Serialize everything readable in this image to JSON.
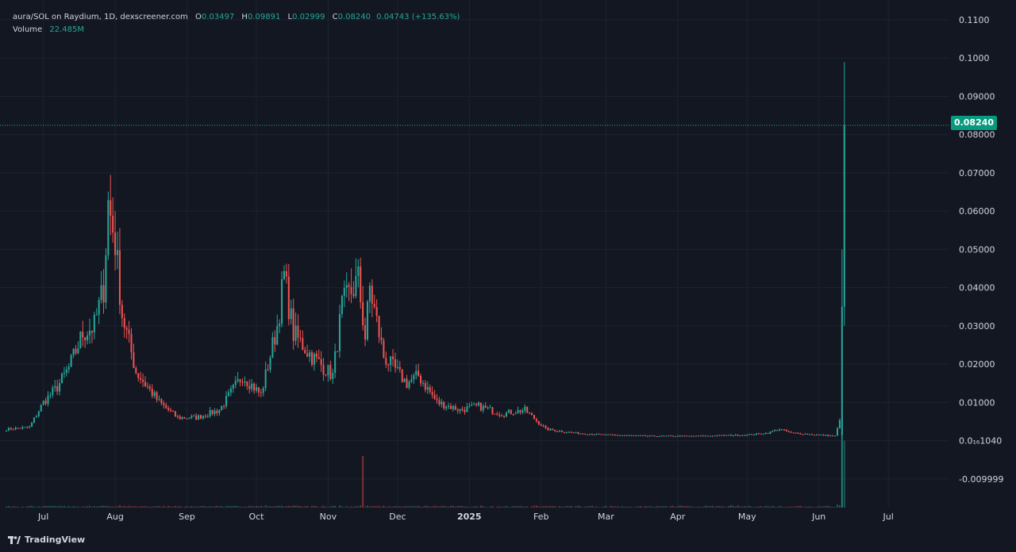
{
  "legend": {
    "symbol": "aura/SOL on Raydium, 1D, dexscreener.com",
    "o_label": "O",
    "o": "0.03497",
    "h_label": "H",
    "h": "0.09891",
    "l_label": "L",
    "l": "0.02999",
    "c_label": "C",
    "c": "0.08240",
    "change": "0.04743 (+135.63%)",
    "volume_label": "Volume",
    "volume": "22.485M"
  },
  "last_price_label": "0.08240",
  "footer": {
    "brand": "TradingView"
  },
  "colors": {
    "up": "#26a69a",
    "down": "#ef5350",
    "background": "#131722",
    "grid": "#1f2330",
    "text": "#d1d4dc",
    "price_tag": "#089981"
  },
  "chart_data": {
    "type": "candlestick",
    "title": "aura/SOL on Raydium, 1D, dexscreener.com",
    "x_ticks": [
      "Jul",
      "Aug",
      "Sep",
      "Oct",
      "Nov",
      "Dec",
      "2025",
      "Feb",
      "Mar",
      "Apr",
      "May",
      "Jun",
      "Jul"
    ],
    "y_ticks": [
      "0.1100",
      "0.1000",
      "0.09000",
      "0.08000",
      "0.07000",
      "0.06000",
      "0.05000",
      "0.04000",
      "0.03000",
      "0.02000",
      "0.01000",
      "0.0₁₆1040",
      "-0.009999"
    ],
    "ylim": [
      -0.0175,
      0.1135
    ],
    "last_price": 0.0824,
    "grid": true,
    "volume_pane": true,
    "close_anchors": [
      [
        "2024-06-15",
        0.003
      ],
      [
        "2024-06-25",
        0.0035
      ],
      [
        "2024-07-01",
        0.01
      ],
      [
        "2024-07-07",
        0.014
      ],
      [
        "2024-07-12",
        0.019
      ],
      [
        "2024-07-18",
        0.028
      ],
      [
        "2024-07-23",
        0.03
      ],
      [
        "2024-07-27",
        0.04
      ],
      [
        "2024-07-29",
        0.062
      ],
      [
        "2024-08-01",
        0.052
      ],
      [
        "2024-08-04",
        0.033
      ],
      [
        "2024-08-10",
        0.018
      ],
      [
        "2024-08-20",
        0.01
      ],
      [
        "2024-08-28",
        0.006
      ],
      [
        "2024-09-05",
        0.006
      ],
      [
        "2024-09-15",
        0.008
      ],
      [
        "2024-09-25",
        0.017
      ],
      [
        "2024-10-03",
        0.012
      ],
      [
        "2024-10-10",
        0.03
      ],
      [
        "2024-10-13",
        0.043
      ],
      [
        "2024-10-17",
        0.028
      ],
      [
        "2024-10-25",
        0.022
      ],
      [
        "2024-11-03",
        0.017
      ],
      [
        "2024-11-07",
        0.035
      ],
      [
        "2024-11-14",
        0.042
      ],
      [
        "2024-11-17",
        0.027
      ],
      [
        "2024-11-19",
        0.04
      ],
      [
        "2024-11-25",
        0.022
      ],
      [
        "2024-12-05",
        0.015
      ],
      [
        "2024-12-10",
        0.017
      ],
      [
        "2024-12-18",
        0.01
      ],
      [
        "2024-12-28",
        0.008
      ],
      [
        "2025-01-05",
        0.009
      ],
      [
        "2025-01-15",
        0.007
      ],
      [
        "2025-01-25",
        0.008
      ],
      [
        "2025-02-03",
        0.003
      ],
      [
        "2025-02-15",
        0.002
      ],
      [
        "2025-03-01",
        0.0015
      ],
      [
        "2025-03-20",
        0.0012
      ],
      [
        "2025-04-10",
        0.0012
      ],
      [
        "2025-05-01",
        0.0015
      ],
      [
        "2025-05-10",
        0.002
      ],
      [
        "2025-05-15",
        0.003
      ],
      [
        "2025-05-20",
        0.002
      ],
      [
        "2025-06-08",
        0.0012
      ],
      [
        "2025-06-10",
        0.005
      ],
      [
        "2025-06-11",
        0.035
      ],
      [
        "2025-06-12",
        0.03497
      ]
    ],
    "highlight_candles": [
      {
        "date": "2025-06-11",
        "open": 0.0015,
        "high": 0.05,
        "low": -0.0175,
        "close": 0.035
      },
      {
        "date": "2025-06-12",
        "open": 0.03497,
        "high": 0.09891,
        "low": 0.02999,
        "close": 0.0824
      }
    ],
    "volume_spikes": [
      [
        "2024-11-16",
        10
      ],
      [
        "2025-06-11",
        15
      ],
      [
        "2025-06-12",
        13
      ]
    ]
  }
}
